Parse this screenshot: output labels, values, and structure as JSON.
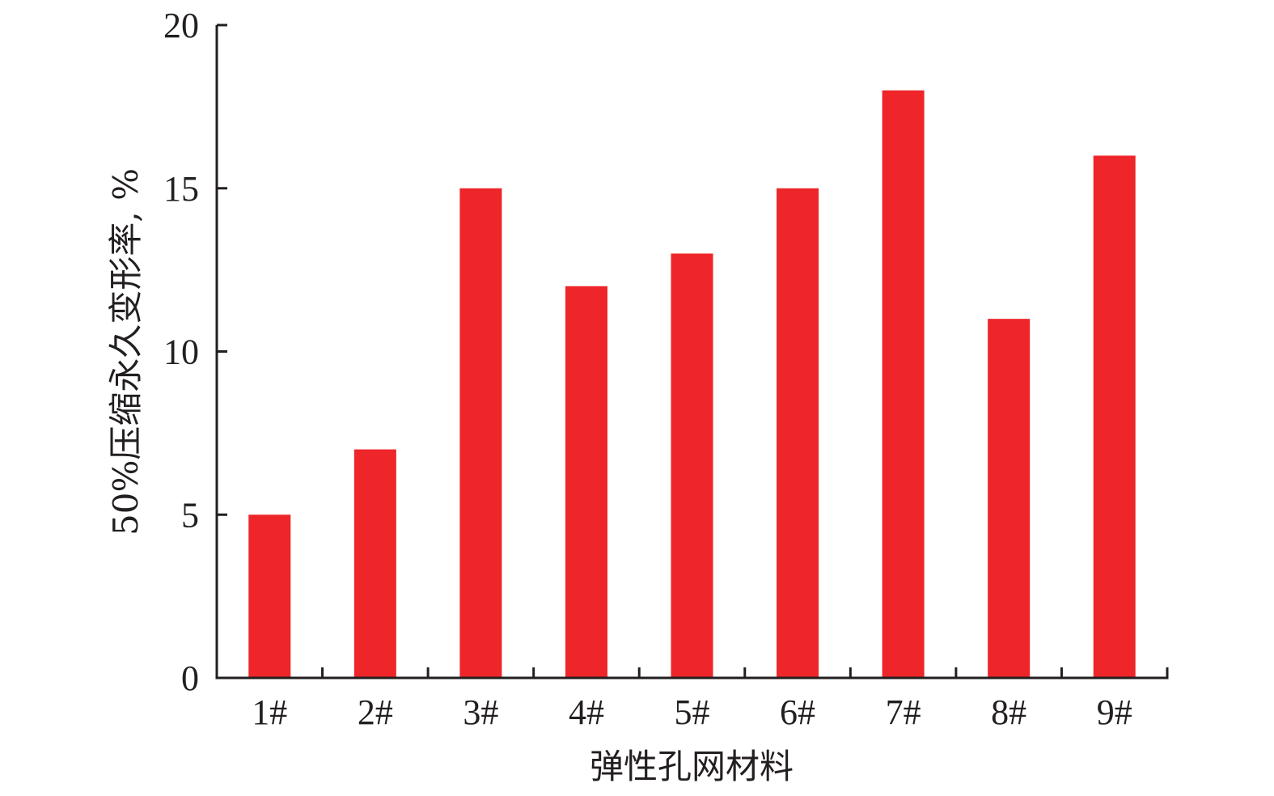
{
  "chart_data": {
    "type": "bar",
    "categories": [
      "1#",
      "2#",
      "3#",
      "4#",
      "5#",
      "6#",
      "7#",
      "8#",
      "9#"
    ],
    "values": [
      5,
      7,
      15,
      12,
      13,
      15,
      18,
      11,
      16
    ],
    "title": "",
    "xlabel": "弹性孔网材料",
    "ylabel": "50%压缩永久变形率, %",
    "ylim": [
      0,
      20
    ],
    "yticks": [
      0,
      5,
      10,
      15,
      20
    ],
    "grid": false,
    "legend": "none",
    "bar_color": "#ee2529",
    "axis_color": "#231f20"
  }
}
